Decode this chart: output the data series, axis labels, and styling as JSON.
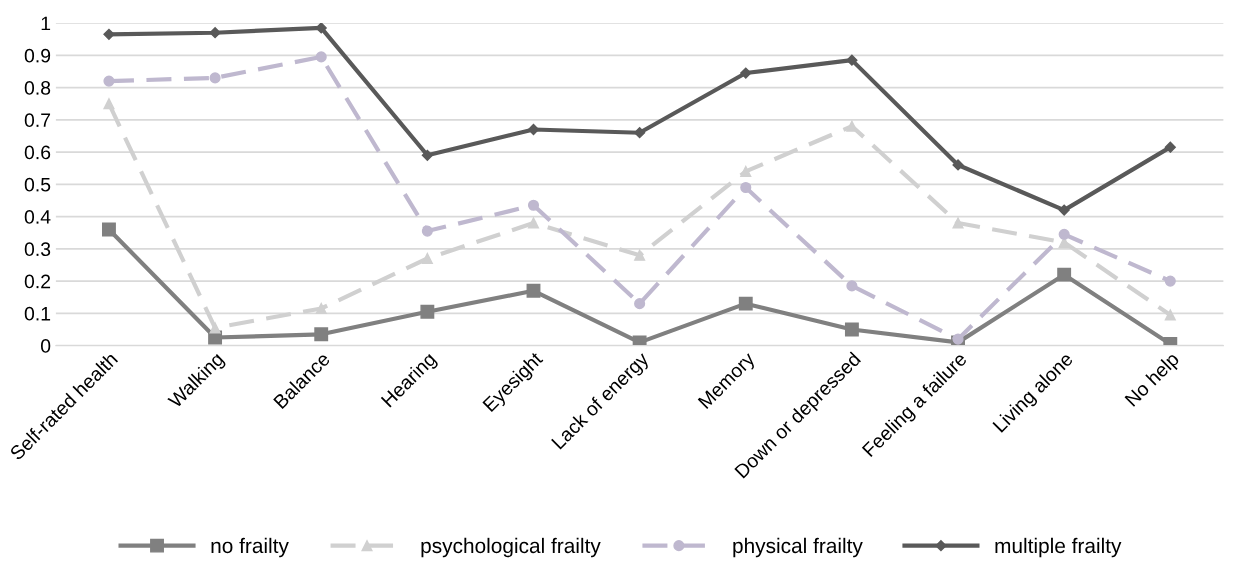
{
  "chart_data": {
    "type": "line",
    "categories": [
      "Self-rated health",
      "Walking",
      "Balance",
      "Hearing",
      "Eyesight",
      "Lack of energy",
      "Memory",
      "Down or depressed",
      "Feeling a failure",
      "Living alone",
      "No help"
    ],
    "series": [
      {
        "name": "no frailty",
        "color": "#808080",
        "marker": "square",
        "line_style": "solid",
        "values": [
          0.36,
          0.025,
          0.035,
          0.105,
          0.17,
          0.01,
          0.13,
          0.05,
          0.01,
          0.22,
          0.005
        ]
      },
      {
        "name": "psychological frailty",
        "color": "#d0d0d0",
        "marker": "triangle",
        "line_style": "dashed",
        "values": [
          0.75,
          0.055,
          0.115,
          0.27,
          0.38,
          0.28,
          0.54,
          0.68,
          0.38,
          0.32,
          0.095
        ]
      },
      {
        "name": "physical frailty",
        "color": "#bfb8cf",
        "marker": "circle",
        "line_style": "dashed",
        "values": [
          0.82,
          0.83,
          0.895,
          0.355,
          0.435,
          0.13,
          0.49,
          0.185,
          0.02,
          0.345,
          0.2
        ]
      },
      {
        "name": "multiple frailty",
        "color": "#595959",
        "marker": "diamond",
        "line_style": "solid",
        "values": [
          0.965,
          0.97,
          0.985,
          0.59,
          0.67,
          0.66,
          0.845,
          0.885,
          0.56,
          0.42,
          0.615
        ]
      }
    ],
    "ylim": [
      0,
      1
    ],
    "yticks": [
      0,
      0.1,
      0.2,
      0.3,
      0.4,
      0.5,
      0.6,
      0.7,
      0.8,
      0.9,
      1
    ],
    "grid": "y",
    "legend": "bottom"
  }
}
